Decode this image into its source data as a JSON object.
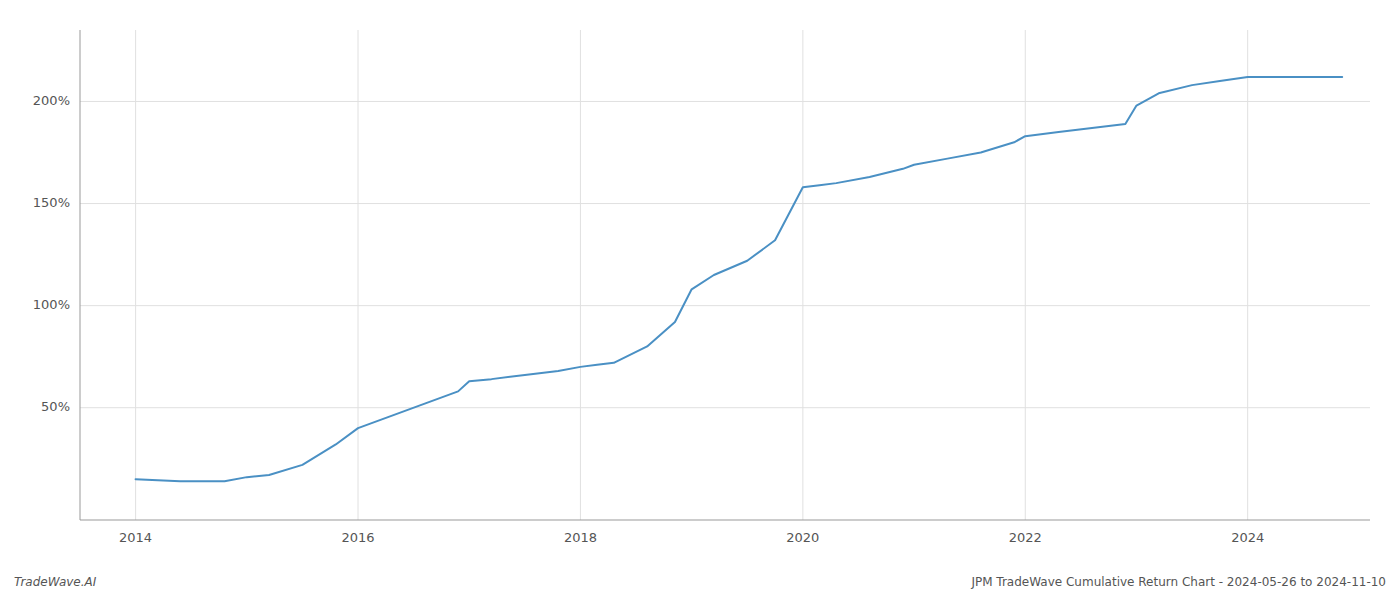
{
  "chart_data": {
    "type": "line",
    "title": "JPM TradeWave Cumulative Return Chart - 2024-05-26 to 2024-11-10",
    "annotations": [
      "TradeWave.AI"
    ],
    "x": [
      2014.0,
      2014.4,
      2014.8,
      2015.0,
      2015.2,
      2015.5,
      2015.8,
      2016.0,
      2016.3,
      2016.6,
      2016.9,
      2017.0,
      2017.2,
      2017.5,
      2017.8,
      2018.0,
      2018.15,
      2018.3,
      2018.6,
      2018.85,
      2019.0,
      2019.2,
      2019.5,
      2019.75,
      2020.0,
      2020.15,
      2020.3,
      2020.6,
      2020.9,
      2021.0,
      2021.3,
      2021.6,
      2021.9,
      2022.0,
      2022.3,
      2022.6,
      2022.9,
      2023.0,
      2023.2,
      2023.5,
      2023.75,
      2024.0,
      2024.3,
      2024.85
    ],
    "values": [
      15,
      14,
      14,
      16,
      17,
      22,
      32,
      40,
      46,
      52,
      58,
      63,
      64,
      66,
      68,
      70,
      71,
      72,
      80,
      92,
      108,
      115,
      122,
      132,
      158,
      159,
      160,
      163,
      167,
      169,
      172,
      175,
      180,
      183,
      185,
      187,
      189,
      198,
      204,
      208,
      210,
      212,
      212,
      212
    ],
    "color": "#4a90c4",
    "xlim": [
      2013.5,
      2025.1
    ],
    "ylim": [
      -5,
      235
    ],
    "xticks": [
      2014,
      2016,
      2018,
      2020,
      2022,
      2024
    ],
    "yticks": [
      {
        "value": 50,
        "label": "50%"
      },
      {
        "value": 100,
        "label": "100%"
      },
      {
        "value": 150,
        "label": "150%"
      },
      {
        "value": 200,
        "label": "200%"
      }
    ],
    "grid": true
  }
}
